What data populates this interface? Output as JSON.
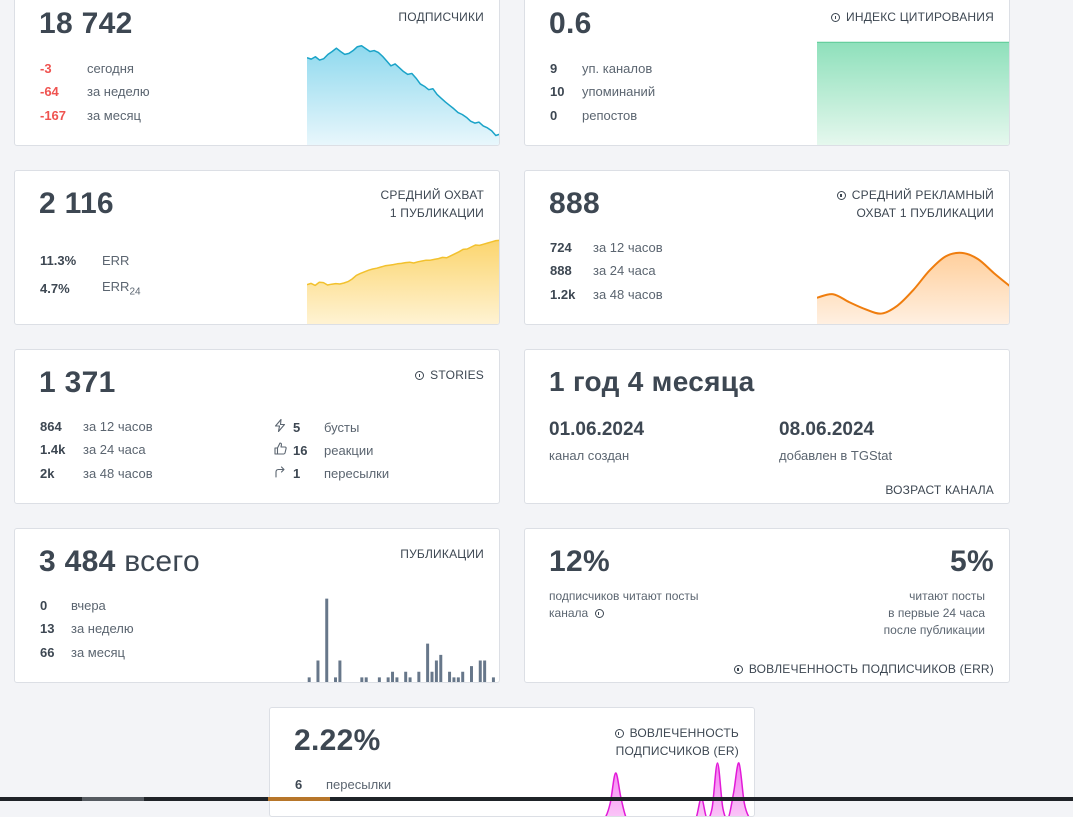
{
  "subscribers": {
    "value": "18 742",
    "title": "ПОДПИСЧИКИ",
    "rows": [
      {
        "value": "-3",
        "label": "сегодня"
      },
      {
        "value": "-64",
        "label": "за неделю"
      },
      {
        "value": "-167",
        "label": "за месяц"
      }
    ]
  },
  "citation": {
    "value": "0.6",
    "title": "ИНДЕКС ЦИТИРОВАНИЯ",
    "rows": [
      {
        "value": "9",
        "label": "уп. каналов"
      },
      {
        "value": "10",
        "label": "упоминаний"
      },
      {
        "value": "0",
        "label": "репостов"
      }
    ]
  },
  "avg_reach": {
    "value": "2 116",
    "title_line1": "СРЕДНИЙ ОХВАТ",
    "title_line2": "1 ПУБЛИКАЦИИ",
    "rows": [
      {
        "value": "11.3%",
        "label": "ERR"
      },
      {
        "value": "4.7%",
        "label": "ERR",
        "sub": "24"
      }
    ]
  },
  "ad_reach": {
    "value": "888",
    "title_line1": "СРЕДНИЙ РЕКЛАМНЫЙ",
    "title_line2": "ОХВАТ 1 ПУБЛИКАЦИИ",
    "rows": [
      {
        "value": "724",
        "label": "за 12 часов"
      },
      {
        "value": "888",
        "label": "за 24 часа"
      },
      {
        "value": "1.2k",
        "label": "за 48 часов"
      }
    ]
  },
  "stories": {
    "value": "1 371",
    "title": "STORIES",
    "rows": [
      {
        "value": "864",
        "label": "за 12 часов"
      },
      {
        "value": "1.4k",
        "label": "за 24 часа"
      },
      {
        "value": "2k",
        "label": "за 48 часов"
      }
    ],
    "stats": [
      {
        "icon": "lightning-icon",
        "value": "5",
        "label": "бусты"
      },
      {
        "icon": "thumbs-up-icon",
        "value": "16",
        "label": "реакции"
      },
      {
        "icon": "share-arrow-icon",
        "value": "1",
        "label": "пересылки"
      }
    ]
  },
  "channel_age": {
    "value": "1 год 4 месяца",
    "created_date": "01.06.2024",
    "created_label": "канал создан",
    "added_date": "08.06.2024",
    "added_label": "добавлен в TGStat",
    "title": "ВОЗРАСТ КАНАЛА"
  },
  "publications": {
    "value": "3 484",
    "value_suffix": "всего",
    "title": "ПУБЛИКАЦИИ",
    "rows": [
      {
        "value": "0",
        "label": "вчера"
      },
      {
        "value": "13",
        "label": "за неделю"
      },
      {
        "value": "66",
        "label": "за месяц"
      }
    ]
  },
  "engagement_err": {
    "left_value": "12%",
    "left_line1": "подписчиков читают посты",
    "left_line2": "канала",
    "right_value": "5%",
    "right_line1": "читают посты",
    "right_line2": "в первые 24 часа",
    "right_line3": "после публикации",
    "title": "ВОВЛЕЧЕННОСТЬ ПОДПИСЧИКОВ (ERR)"
  },
  "engagement_er": {
    "value": "2.22%",
    "title_line1": "ВОВЛЕЧЕННОСТЬ",
    "title_line2": "ПОДПИСЧИКОВ (ER)",
    "rows": [
      {
        "value": "6",
        "label": "пересылки"
      }
    ]
  },
  "colors": {
    "negative": "#ef5350",
    "subscribers_line": "#1aa3c8",
    "citation_fill": "#8ee0bb",
    "reach_line": "#f2c12e",
    "ad_line": "#ef7d0e",
    "bars": "#67778a",
    "er_line": "#e21ad8"
  },
  "chart_data": [
    {
      "type": "area",
      "name": "subscribers-trend",
      "title": "ПОДПИСЧИКИ",
      "y": [
        18905,
        18902,
        18907,
        18900,
        18903,
        18912,
        18918,
        18925,
        18918,
        18912,
        18914,
        18920,
        18928,
        18930,
        18924,
        18918,
        18920,
        18916,
        18908,
        18898,
        18888,
        18892,
        18884,
        18876,
        18870,
        18872,
        18862,
        18850,
        18845,
        18838,
        18840,
        18828,
        18820,
        18812,
        18805,
        18798,
        18790,
        18786,
        18780,
        18772,
        18768,
        18770,
        18762,
        18758,
        18752,
        18742,
        18745
      ],
      "ylim": [
        18720,
        18940
      ]
    },
    {
      "type": "area",
      "name": "citation-trend",
      "title": "ИНДЕКС ЦИТИРОВАНИЯ",
      "y": [
        0.6,
        0.6
      ],
      "ylim": [
        0,
        0.63
      ]
    },
    {
      "type": "area",
      "name": "avg-reach-trend",
      "title": "СРЕДНИЙ ОХВАТ 1 ПУБЛИКАЦИИ",
      "y": [
        1010,
        1040,
        990,
        1070,
        1060,
        1000,
        1020,
        1035,
        1025,
        1050,
        1085,
        1150,
        1240,
        1290,
        1330,
        1370,
        1400,
        1420,
        1450,
        1480,
        1495,
        1510,
        1530,
        1540,
        1560,
        1570,
        1550,
        1580,
        1600,
        1620,
        1620,
        1640,
        1660,
        1690,
        1680,
        1730,
        1780,
        1830,
        1890,
        1900,
        1950,
        2000,
        1990,
        2020,
        2050,
        2080,
        2110,
        2116
      ],
      "ylim": [
        0,
        2200
      ]
    },
    {
      "type": "area",
      "name": "ad-reach-trend",
      "title": "СРЕДНИЙ РЕКЛАМНЫЙ ОХВАТ 1 ПУБЛИКАЦИИ",
      "y": [
        610,
        650,
        560,
        480,
        430,
        520,
        700,
        920,
        1080,
        1120,
        1050,
        890,
        740
      ],
      "ylim": [
        300,
        1300
      ]
    },
    {
      "type": "bar",
      "name": "publications-per-day",
      "title": "ПУБЛИКАЦИИ",
      "values": [
        1,
        0,
        4,
        0,
        15,
        0,
        1,
        4,
        0,
        0,
        0,
        0,
        1,
        1,
        0,
        0,
        1,
        0,
        1,
        2,
        1,
        0,
        2,
        1,
        0,
        2,
        0,
        7,
        2,
        4,
        5,
        0,
        2,
        1,
        1,
        2,
        0,
        3,
        0,
        4,
        4,
        0,
        1,
        0
      ],
      "ylim": [
        0,
        16
      ]
    },
    {
      "type": "area",
      "name": "engagement-er-trend",
      "title": "ВОВЛЕЧЕННОСТЬ ПОДПИСЧИКОВ (ER)",
      "y": [
        0,
        0,
        0,
        0,
        0,
        0,
        0,
        0,
        0,
        0.3,
        0.9,
        0.4,
        0,
        0,
        0,
        0,
        0,
        0,
        0,
        0,
        0,
        0,
        0,
        0,
        0,
        0,
        0.4,
        0,
        0.2,
        1.1,
        0.2,
        0,
        0.5,
        1.1,
        0.3,
        0,
        0
      ],
      "ylim": [
        0,
        1.2
      ]
    }
  ]
}
